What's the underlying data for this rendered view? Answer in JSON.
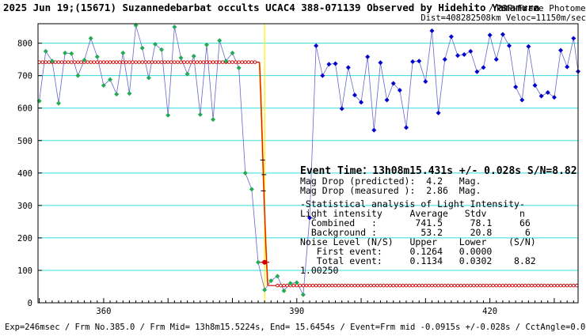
{
  "header": {
    "title": "2025 Jun 19;(15671) Suzannedebarbat occults UCAC4 388-071139 Observed by Hidehito Yamamura",
    "method": "PSF-Frame Photometry",
    "separator": "/",
    "dist_veloc": "Dist=408282508km Veloc=11150m/sec"
  },
  "footer": "Exp=246msec / Frm No.385.0 / Frm Mid= 13h8m15.5224s, End= 15.6454s / Event=Frm mid -0.0915s +/-0.028s / CctAngle=0.0deg",
  "info": {
    "event_time": "Event Time：13h08m15.431s  +/- 0.028s  S/N=8.82",
    "lines": [
      "Mag Drop (predicted):  4.2   Mag.",
      "Mag Drop (measured ):  2.86  Mag.",
      "-Statistical analysis of Light Intensity-",
      "Light intensity     Average   Stdv      n",
      "  Combined   :       741.5     78.1     66",
      "  Background :        53.2     20.8      6",
      "Noise Level (N/S)   Upper    Lower    (S/N)",
      "   First event:     0.1264   0.0000",
      "   Total event:     0.1134   0.0302    8.82",
      "1.00250"
    ]
  },
  "colors": {
    "background": "#ffffff",
    "grid": "#33dddd",
    "frame": "#000000",
    "green_points": "#22aa55",
    "blue_points": "#0000cc",
    "connect_line": "#6666cc",
    "model_line": "#cc0000",
    "event_line": "#ffee00",
    "drop_line": "#ff8800"
  },
  "chart_data": {
    "type": "line",
    "title": "",
    "xlabel": "",
    "ylabel": "",
    "xlim": [
      349.8,
      433.7
    ],
    "ylim": [
      0,
      860
    ],
    "x_ticks": [
      360,
      390,
      420
    ],
    "y_ticks": [
      0,
      100,
      200,
      300,
      400,
      500,
      600,
      700,
      800
    ],
    "grid": true,
    "event_frame": 385.0,
    "series": [
      {
        "marker": "diamond",
        "color": "green",
        "x": [
          350,
          351,
          352,
          353,
          354,
          355,
          356,
          357,
          358,
          359,
          360,
          361,
          362,
          363,
          364,
          365,
          366,
          367,
          368,
          369,
          370,
          371,
          372,
          373,
          374,
          375,
          376,
          377,
          378,
          379,
          380,
          381,
          382,
          383,
          384,
          385,
          386,
          387,
          388,
          389,
          390,
          391
        ],
        "y": [
          622,
          775,
          745,
          615,
          770,
          768,
          700,
          748,
          815,
          758,
          670,
          688,
          643,
          770,
          645,
          855,
          785,
          693,
          797,
          780,
          578,
          850,
          755,
          705,
          760,
          580,
          795,
          565,
          808,
          745,
          770,
          724,
          400,
          350,
          125,
          40,
          68,
          82,
          37,
          60,
          62,
          25
        ]
      },
      {
        "marker": "diamond",
        "color": "blue",
        "x": [
          392,
          393,
          394,
          395,
          396,
          397,
          398,
          399,
          400,
          401,
          402,
          403,
          404,
          405,
          406,
          407,
          408,
          409,
          410,
          411,
          412,
          413,
          414,
          415,
          416,
          417,
          418,
          419,
          420,
          421,
          422,
          423,
          424,
          425,
          426,
          427,
          428,
          429,
          430,
          431,
          432,
          433
        ],
        "y": [
          262,
          792,
          700,
          735,
          737,
          598,
          725,
          640,
          618,
          758,
          532,
          740,
          625,
          676,
          655,
          540,
          743,
          745,
          682,
          838,
          585,
          750,
          820,
          762,
          765,
          775,
          712,
          725,
          825,
          750,
          827,
          792,
          665,
          625,
          790,
          670,
          637,
          648,
          633,
          778,
          727,
          815
        ]
      }
    ],
    "extra_points": {
      "blue": [
        [
          433.7,
          713
        ]
      ]
    },
    "model": {
      "x": [
        349.8,
        386.0,
        386.5,
        387,
        388,
        389,
        390,
        391,
        392,
        393,
        394,
        395,
        396,
        397,
        398,
        399,
        400,
        401,
        402,
        403,
        404,
        405,
        406,
        407,
        408,
        409,
        410,
        411,
        412,
        413,
        414,
        415,
        416,
        417,
        418,
        419,
        420,
        421,
        422,
        423,
        424,
        425,
        426,
        427,
        428,
        429,
        430,
        431,
        432,
        433,
        433.7
      ],
      "level_high": 741.5,
      "level_low": 53.2
    }
  }
}
